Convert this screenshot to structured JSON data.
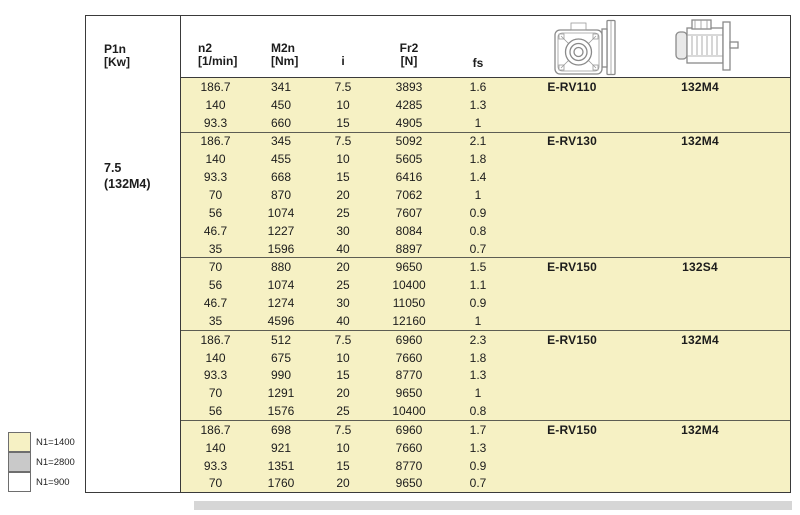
{
  "header": {
    "p1n": {
      "line1": "P1n",
      "line2": "[Kw]"
    },
    "cols": [
      {
        "line1": "n2",
        "line2": "[1/min]"
      },
      {
        "line1": "M2n",
        "line2": "[Nm]"
      },
      {
        "line1": "i",
        "line2": ""
      },
      {
        "line1": "Fr2",
        "line2": "[N]"
      },
      {
        "line1": "fs",
        "line2": ""
      }
    ],
    "icons": [
      {
        "name": "gearbox-icon"
      },
      {
        "name": "motor-icon"
      }
    ]
  },
  "p1n": {
    "power": "7.5",
    "motor_size": "(132M4)"
  },
  "groups": [
    {
      "model": "E-RV110",
      "motor": "132M4",
      "rows": [
        [
          "186.7",
          "341",
          "7.5",
          "3893",
          "1.6"
        ],
        [
          "140",
          "450",
          "10",
          "4285",
          "1.3"
        ],
        [
          "93.3",
          "660",
          "15",
          "4905",
          "1"
        ]
      ]
    },
    {
      "model": "E-RV130",
      "motor": "132M4",
      "rows": [
        [
          "186.7",
          "345",
          "7.5",
          "5092",
          "2.1"
        ],
        [
          "140",
          "455",
          "10",
          "5605",
          "1.8"
        ],
        [
          "93.3",
          "668",
          "15",
          "6416",
          "1.4"
        ],
        [
          "70",
          "870",
          "20",
          "7062",
          "1"
        ],
        [
          "56",
          "1074",
          "25",
          "7607",
          "0.9"
        ],
        [
          "46.7",
          "1227",
          "30",
          "8084",
          "0.8"
        ],
        [
          "35",
          "1596",
          "40",
          "8897",
          "0.7"
        ]
      ]
    },
    {
      "model": "E-RV150",
      "motor": "132S4",
      "rows": [
        [
          "70",
          "880",
          "20",
          "9650",
          "1.5"
        ],
        [
          "56",
          "1074",
          "25",
          "10400",
          "1.1"
        ],
        [
          "46.7",
          "1274",
          "30",
          "11050",
          "0.9"
        ],
        [
          "35",
          "4596",
          "40",
          "12160",
          "1"
        ]
      ]
    },
    {
      "model": "E-RV150",
      "motor": "132M4",
      "rows": [
        [
          "186.7",
          "512",
          "7.5",
          "6960",
          "2.3"
        ],
        [
          "140",
          "675",
          "10",
          "7660",
          "1.8"
        ],
        [
          "93.3",
          "990",
          "15",
          "8770",
          "1.3"
        ],
        [
          "70",
          "1291",
          "20",
          "9650",
          "1"
        ],
        [
          "56",
          "1576",
          "25",
          "10400",
          "0.8"
        ]
      ]
    },
    {
      "model": "E-RV150",
      "motor": "132M4",
      "rows": [
        [
          "186.7",
          "698",
          "7.5",
          "6960",
          "1.7"
        ],
        [
          "140",
          "921",
          "10",
          "7660",
          "1.3"
        ],
        [
          "93.3",
          "1351",
          "15",
          "8770",
          "0.9"
        ],
        [
          "70",
          "1760",
          "20",
          "9650",
          "0.7"
        ]
      ]
    }
  ],
  "legend": [
    {
      "label": "N1=1400",
      "color": "#F6F1C4"
    },
    {
      "label": "N1=2800",
      "color": "#C9C9C9"
    },
    {
      "label": "N1=900",
      "color": "#FFFFFF"
    }
  ],
  "colors": {
    "highlight_yellow": "#F6F1C4",
    "legend_gray": "#C9C9C9",
    "outer_border": "#3a3a3a",
    "group_line": "#5d5d53"
  }
}
